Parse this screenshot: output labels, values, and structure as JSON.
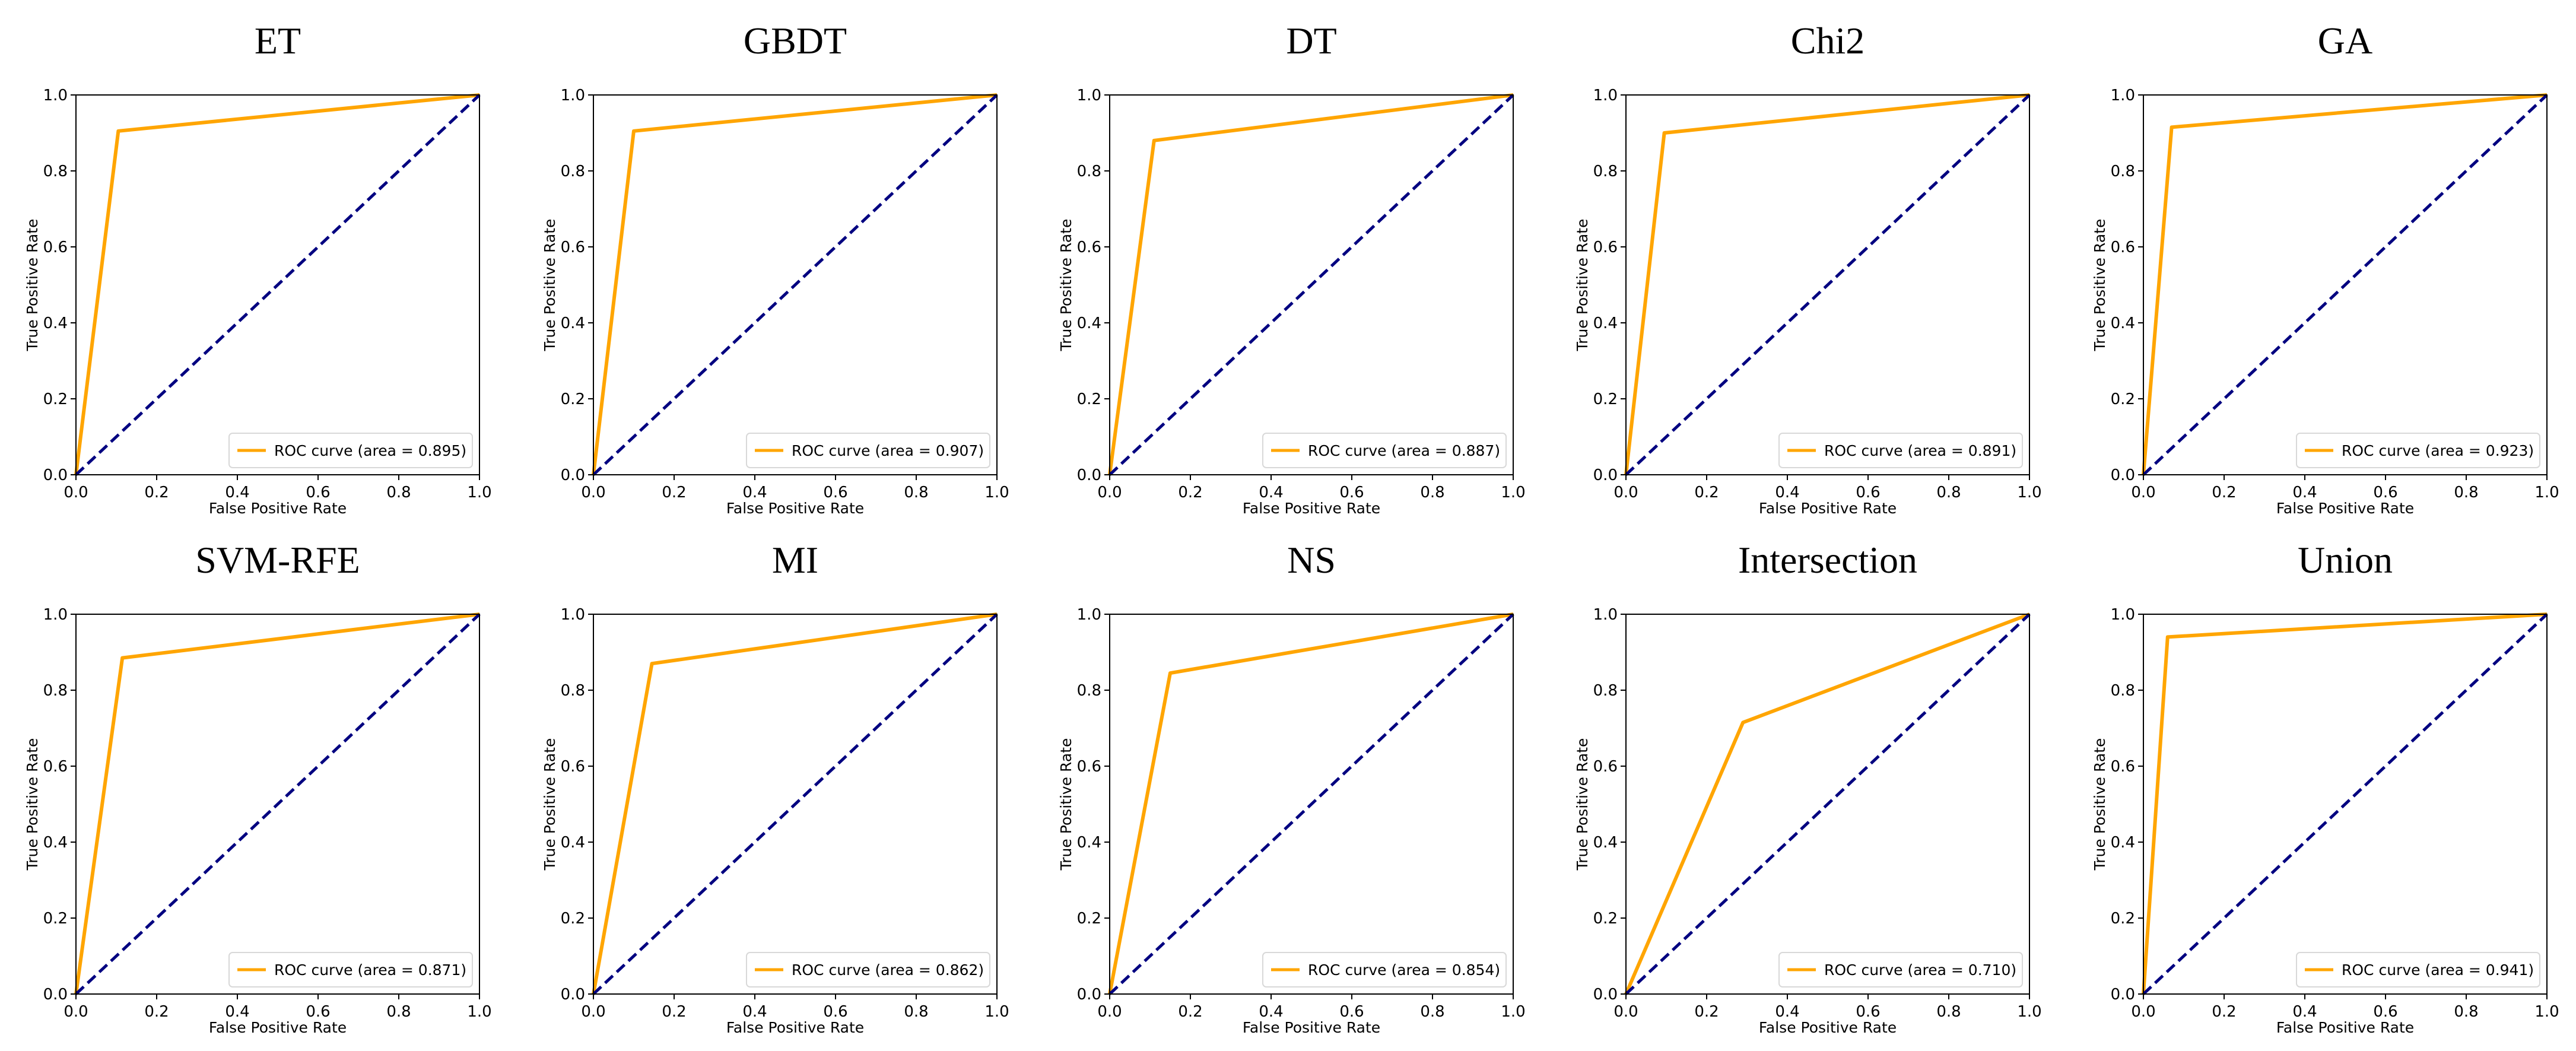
{
  "chart_data": [
    {
      "type": "line",
      "title": "ET",
      "xlabel": "False Positive Rate",
      "ylabel": "True Positive Rate",
      "xlim": [
        0,
        1
      ],
      "ylim": [
        0,
        1
      ],
      "xticks": [
        "0.0",
        "0.2",
        "0.4",
        "0.6",
        "0.8",
        "1.0"
      ],
      "yticks": [
        "0.0",
        "0.2",
        "0.4",
        "0.6",
        "0.8",
        "1.0"
      ],
      "series": [
        {
          "name": "ROC curve (area = 0.895)",
          "x": [
            0,
            0.105,
            1
          ],
          "y": [
            0,
            0.905,
            1
          ],
          "color": "#ffa500",
          "style": "solid"
        },
        {
          "name": "chance",
          "x": [
            0,
            1
          ],
          "y": [
            0,
            1
          ],
          "color": "#000080",
          "style": "dashed"
        }
      ],
      "legend": "lower-right"
    },
    {
      "type": "line",
      "title": "GBDT",
      "xlabel": "False Positive Rate",
      "ylabel": "True Positive Rate",
      "xlim": [
        0,
        1
      ],
      "ylim": [
        0,
        1
      ],
      "xticks": [
        "0.0",
        "0.2",
        "0.4",
        "0.6",
        "0.8",
        "1.0"
      ],
      "yticks": [
        "0.0",
        "0.2",
        "0.4",
        "0.6",
        "0.8",
        "1.0"
      ],
      "series": [
        {
          "name": "ROC curve (area = 0.907)",
          "x": [
            0,
            0.1,
            1
          ],
          "y": [
            0,
            0.905,
            1
          ],
          "color": "#ffa500",
          "style": "solid"
        },
        {
          "name": "chance",
          "x": [
            0,
            1
          ],
          "y": [
            0,
            1
          ],
          "color": "#000080",
          "style": "dashed"
        }
      ],
      "legend": "lower-right"
    },
    {
      "type": "line",
      "title": "DT",
      "xlabel": "False Positive Rate",
      "ylabel": "True Positive Rate",
      "xlim": [
        0,
        1
      ],
      "ylim": [
        0,
        1
      ],
      "xticks": [
        "0.0",
        "0.2",
        "0.4",
        "0.6",
        "0.8",
        "1.0"
      ],
      "yticks": [
        "0.0",
        "0.2",
        "0.4",
        "0.6",
        "0.8",
        "1.0"
      ],
      "series": [
        {
          "name": "ROC curve (area = 0.887)",
          "x": [
            0,
            0.11,
            1
          ],
          "y": [
            0,
            0.88,
            1
          ],
          "color": "#ffa500",
          "style": "solid"
        },
        {
          "name": "chance",
          "x": [
            0,
            1
          ],
          "y": [
            0,
            1
          ],
          "color": "#000080",
          "style": "dashed"
        }
      ],
      "legend": "lower-right"
    },
    {
      "type": "line",
      "title": "Chi2",
      "xlabel": "False Positive Rate",
      "ylabel": "True Positive Rate",
      "xlim": [
        0,
        1
      ],
      "ylim": [
        0,
        1
      ],
      "xticks": [
        "0.0",
        "0.2",
        "0.4",
        "0.6",
        "0.8",
        "1.0"
      ],
      "yticks": [
        "0.0",
        "0.2",
        "0.4",
        "0.6",
        "0.8",
        "1.0"
      ],
      "series": [
        {
          "name": "ROC curve (area = 0.891)",
          "x": [
            0,
            0.095,
            1
          ],
          "y": [
            0,
            0.9,
            1
          ],
          "color": "#ffa500",
          "style": "solid"
        },
        {
          "name": "chance",
          "x": [
            0,
            1
          ],
          "y": [
            0,
            1
          ],
          "color": "#000080",
          "style": "dashed"
        }
      ],
      "legend": "lower-right"
    },
    {
      "type": "line",
      "title": "GA",
      "xlabel": "False Positive Rate",
      "ylabel": "True Positive Rate",
      "xlim": [
        0,
        1
      ],
      "ylim": [
        0,
        1
      ],
      "xticks": [
        "0.0",
        "0.2",
        "0.4",
        "0.6",
        "0.8",
        "1.0"
      ],
      "yticks": [
        "0.0",
        "0.2",
        "0.4",
        "0.6",
        "0.8",
        "1.0"
      ],
      "series": [
        {
          "name": "ROC curve (area = 0.923)",
          "x": [
            0,
            0.07,
            1
          ],
          "y": [
            0,
            0.915,
            1
          ],
          "color": "#ffa500",
          "style": "solid"
        },
        {
          "name": "chance",
          "x": [
            0,
            1
          ],
          "y": [
            0,
            1
          ],
          "color": "#000080",
          "style": "dashed"
        }
      ],
      "legend": "lower-right"
    },
    {
      "type": "line",
      "title": "SVM-RFE",
      "xlabel": "False Positive Rate",
      "ylabel": "True Positive Rate",
      "xlim": [
        0,
        1
      ],
      "ylim": [
        0,
        1
      ],
      "xticks": [
        "0.0",
        "0.2",
        "0.4",
        "0.6",
        "0.8",
        "1.0"
      ],
      "yticks": [
        "0.0",
        "0.2",
        "0.4",
        "0.6",
        "0.8",
        "1.0"
      ],
      "series": [
        {
          "name": "ROC curve (area = 0.871)",
          "x": [
            0,
            0.115,
            1
          ],
          "y": [
            0,
            0.885,
            1
          ],
          "color": "#ffa500",
          "style": "solid"
        },
        {
          "name": "chance",
          "x": [
            0,
            1
          ],
          "y": [
            0,
            1
          ],
          "color": "#000080",
          "style": "dashed"
        }
      ],
      "legend": "lower-right"
    },
    {
      "type": "line",
      "title": "MI",
      "xlabel": "False Positive Rate",
      "ylabel": "True Positive Rate",
      "xlim": [
        0,
        1
      ],
      "ylim": [
        0,
        1
      ],
      "xticks": [
        "0.0",
        "0.2",
        "0.4",
        "0.6",
        "0.8",
        "1.0"
      ],
      "yticks": [
        "0.0",
        "0.2",
        "0.4",
        "0.6",
        "0.8",
        "1.0"
      ],
      "series": [
        {
          "name": "ROC curve (area = 0.862)",
          "x": [
            0,
            0.145,
            1
          ],
          "y": [
            0,
            0.87,
            1
          ],
          "color": "#ffa500",
          "style": "solid"
        },
        {
          "name": "chance",
          "x": [
            0,
            1
          ],
          "y": [
            0,
            1
          ],
          "color": "#000080",
          "style": "dashed"
        }
      ],
      "legend": "lower-right"
    },
    {
      "type": "line",
      "title": "NS",
      "xlabel": "False Positive Rate",
      "ylabel": "True Positive Rate",
      "xlim": [
        0,
        1
      ],
      "ylim": [
        0,
        1
      ],
      "xticks": [
        "0.0",
        "0.2",
        "0.4",
        "0.6",
        "0.8",
        "1.0"
      ],
      "yticks": [
        "0.0",
        "0.2",
        "0.4",
        "0.6",
        "0.8",
        "1.0"
      ],
      "series": [
        {
          "name": "ROC curve (area = 0.854)",
          "x": [
            0,
            0.15,
            1
          ],
          "y": [
            0,
            0.845,
            1
          ],
          "color": "#ffa500",
          "style": "solid"
        },
        {
          "name": "chance",
          "x": [
            0,
            1
          ],
          "y": [
            0,
            1
          ],
          "color": "#000080",
          "style": "dashed"
        }
      ],
      "legend": "lower-right"
    },
    {
      "type": "line",
      "title": "Intersection",
      "xlabel": "False Positive Rate",
      "ylabel": "True Positive Rate",
      "xlim": [
        0,
        1
      ],
      "ylim": [
        0,
        1
      ],
      "xticks": [
        "0.0",
        "0.2",
        "0.4",
        "0.6",
        "0.8",
        "1.0"
      ],
      "yticks": [
        "0.0",
        "0.2",
        "0.4",
        "0.6",
        "0.8",
        "1.0"
      ],
      "series": [
        {
          "name": "ROC curve (area = 0.710)",
          "x": [
            0,
            0.29,
            1
          ],
          "y": [
            0,
            0.715,
            1
          ],
          "color": "#ffa500",
          "style": "solid"
        },
        {
          "name": "chance",
          "x": [
            0,
            1
          ],
          "y": [
            0,
            1
          ],
          "color": "#000080",
          "style": "dashed"
        }
      ],
      "legend": "lower-right"
    },
    {
      "type": "line",
      "title": "Union",
      "xlabel": "False Positive Rate",
      "ylabel": "True Positive Rate",
      "xlim": [
        0,
        1
      ],
      "ylim": [
        0,
        1
      ],
      "xticks": [
        "0.0",
        "0.2",
        "0.4",
        "0.6",
        "0.8",
        "1.0"
      ],
      "yticks": [
        "0.0",
        "0.2",
        "0.4",
        "0.6",
        "0.8",
        "1.0"
      ],
      "series": [
        {
          "name": "ROC curve (area = 0.941)",
          "x": [
            0,
            0.06,
            1
          ],
          "y": [
            0,
            0.94,
            1
          ],
          "color": "#ffa500",
          "style": "solid"
        },
        {
          "name": "chance",
          "x": [
            0,
            1
          ],
          "y": [
            0,
            1
          ],
          "color": "#000080",
          "style": "dashed"
        }
      ],
      "legend": "lower-right"
    }
  ]
}
